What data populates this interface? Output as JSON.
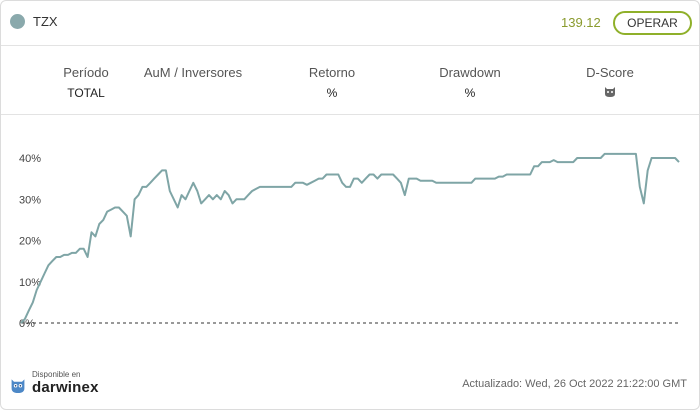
{
  "header": {
    "ticker": "TZX",
    "price": "139.12",
    "cta_label": "OPERAR",
    "dot_color": "#8aa9ac"
  },
  "stats": [
    {
      "label": "Período",
      "value": "TOTAL"
    },
    {
      "label": "AuM / Inversores",
      "value": ""
    },
    {
      "label": "Retorno",
      "value": "%"
    },
    {
      "label": "Drawdown",
      "value": "%"
    },
    {
      "label": "D-Score",
      "value": "",
      "icon": "owl-icon"
    }
  ],
  "chart_data": {
    "type": "line",
    "yticks": [
      "40%",
      "30%",
      "20%",
      "10%",
      "0%"
    ],
    "ylim": [
      0,
      42
    ],
    "line_color": "#7fa5a6",
    "baseline": 0,
    "series": [
      {
        "name": "",
        "values": [
          0,
          1,
          3,
          5,
          8,
          10,
          12,
          14,
          15,
          16,
          16,
          16.5,
          16.5,
          17,
          17,
          18,
          18,
          16,
          22,
          21,
          24,
          25,
          27,
          27.5,
          28,
          28,
          27,
          26,
          21,
          30,
          31,
          33,
          33,
          34,
          35,
          36,
          37,
          37,
          32,
          30,
          28,
          31,
          30,
          32,
          34,
          32,
          29,
          30,
          31,
          30,
          31,
          30,
          32,
          31,
          29,
          30,
          30,
          30,
          31,
          32,
          32.5,
          33,
          33,
          33,
          33,
          33,
          33,
          33,
          33,
          33,
          34,
          34,
          34,
          33.5,
          34,
          34.5,
          35,
          35,
          36,
          36,
          36,
          36,
          34,
          33,
          33,
          35,
          35,
          34,
          35,
          36,
          36,
          35,
          36,
          36,
          36,
          36,
          35,
          34,
          31,
          35,
          35,
          35,
          34.5,
          34.5,
          34.5,
          34.5,
          34,
          34,
          34,
          34,
          34,
          34,
          34,
          34,
          34,
          34,
          35,
          35,
          35,
          35,
          35,
          35,
          35.5,
          35.5,
          36,
          36,
          36,
          36,
          36,
          36,
          36,
          38,
          38,
          39,
          39,
          39,
          39.5,
          39,
          39,
          39,
          39,
          39,
          40,
          40,
          40,
          40,
          40,
          40,
          40,
          41,
          41,
          41,
          41,
          41,
          41,
          41,
          41,
          41,
          33,
          29,
          37,
          40,
          40,
          40,
          40,
          40,
          40,
          40,
          39
        ]
      }
    ]
  },
  "footer": {
    "available": "Disponible en",
    "brand": "darwinex",
    "updated": "Actualizado: Wed, 26 Oct 2022 21:22:00 GMT"
  }
}
